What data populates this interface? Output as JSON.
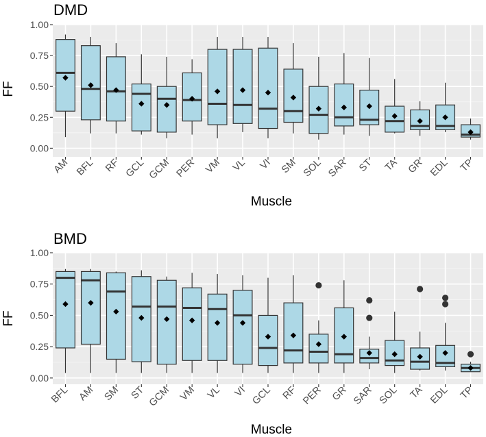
{
  "chart_data": [
    {
      "type": "boxplot",
      "title": "DMD",
      "xlabel": "Muscle",
      "ylabel": "FF",
      "ylim": [
        -0.07,
        1.0
      ],
      "yticks": [
        0.0,
        0.25,
        0.5,
        0.75,
        1.0
      ],
      "ytick_labels": [
        "0.00",
        "0.25",
        "0.50",
        "0.75",
        "1.00"
      ],
      "grid": true,
      "box_fill": "#add8e6",
      "panel_bg": "#ebebeb",
      "categories": [
        "AM",
        "BFL",
        "RF",
        "GCL",
        "GCM",
        "PER",
        "VM",
        "VL",
        "VI",
        "SM",
        "SOL",
        "SAR",
        "ST",
        "TA",
        "GR",
        "EDL",
        "TP"
      ],
      "boxes": [
        {
          "min": 0.09,
          "q1": 0.3,
          "median": 0.61,
          "q3": 0.88,
          "max": 0.92,
          "mean": 0.57,
          "outliers": []
        },
        {
          "min": 0.12,
          "q1": 0.23,
          "median": 0.48,
          "q3": 0.83,
          "max": 0.9,
          "mean": 0.51,
          "outliers": []
        },
        {
          "min": 0.12,
          "q1": 0.22,
          "median": 0.46,
          "q3": 0.74,
          "max": 0.85,
          "mean": 0.47,
          "outliers": []
        },
        {
          "min": 0.11,
          "q1": 0.14,
          "median": 0.44,
          "q3": 0.52,
          "max": 0.76,
          "mean": 0.36,
          "outliers": []
        },
        {
          "min": 0.08,
          "q1": 0.13,
          "median": 0.4,
          "q3": 0.5,
          "max": 0.74,
          "mean": 0.35,
          "outliers": []
        },
        {
          "min": 0.11,
          "q1": 0.22,
          "median": 0.39,
          "q3": 0.61,
          "max": 0.72,
          "mean": 0.4,
          "outliers": []
        },
        {
          "min": 0.08,
          "q1": 0.19,
          "median": 0.36,
          "q3": 0.8,
          "max": 0.9,
          "mean": 0.46,
          "outliers": []
        },
        {
          "min": 0.13,
          "q1": 0.2,
          "median": 0.35,
          "q3": 0.8,
          "max": 0.9,
          "mean": 0.47,
          "outliers": []
        },
        {
          "min": 0.08,
          "q1": 0.16,
          "median": 0.32,
          "q3": 0.81,
          "max": 0.9,
          "mean": 0.45,
          "outliers": []
        },
        {
          "min": 0.12,
          "q1": 0.21,
          "median": 0.3,
          "q3": 0.64,
          "max": 0.85,
          "mean": 0.41,
          "outliers": []
        },
        {
          "min": 0.07,
          "q1": 0.12,
          "median": 0.27,
          "q3": 0.5,
          "max": 0.74,
          "mean": 0.32,
          "outliers": []
        },
        {
          "min": 0.11,
          "q1": 0.18,
          "median": 0.25,
          "q3": 0.52,
          "max": 0.77,
          "mean": 0.33,
          "outliers": []
        },
        {
          "min": 0.1,
          "q1": 0.19,
          "median": 0.23,
          "q3": 0.47,
          "max": 0.73,
          "mean": 0.34,
          "outliers": []
        },
        {
          "min": 0.12,
          "q1": 0.13,
          "median": 0.22,
          "q3": 0.34,
          "max": 0.56,
          "mean": 0.26,
          "outliers": []
        },
        {
          "min": 0.1,
          "q1": 0.15,
          "median": 0.18,
          "q3": 0.31,
          "max": 0.38,
          "mean": 0.22,
          "outliers": []
        },
        {
          "min": 0.13,
          "q1": 0.15,
          "median": 0.18,
          "q3": 0.35,
          "max": 0.53,
          "mean": 0.25,
          "outliers": []
        },
        {
          "min": 0.07,
          "q1": 0.09,
          "median": 0.11,
          "q3": 0.19,
          "max": 0.24,
          "mean": 0.13,
          "outliers": []
        }
      ]
    },
    {
      "type": "boxplot",
      "title": "BMD",
      "xlabel": "Muscle",
      "ylabel": "FF",
      "ylim": [
        -0.05,
        1.0
      ],
      "yticks": [
        0.0,
        0.25,
        0.5,
        0.75,
        1.0
      ],
      "ytick_labels": [
        "0.00",
        "0.25",
        "0.50",
        "0.75",
        "1.00"
      ],
      "grid": true,
      "box_fill": "#add8e6",
      "panel_bg": "#ebebeb",
      "categories": [
        "BFL",
        "AM",
        "SM",
        "ST",
        "GCM",
        "VM",
        "VL",
        "VI",
        "GCL",
        "RF",
        "PER",
        "GR",
        "SAR",
        "SOL",
        "TA",
        "EDL",
        "TP"
      ],
      "boxes": [
        {
          "min": 0.04,
          "q1": 0.24,
          "median": 0.8,
          "q3": 0.85,
          "max": 0.87,
          "mean": 0.59,
          "outliers": []
        },
        {
          "min": 0.04,
          "q1": 0.27,
          "median": 0.78,
          "q3": 0.85,
          "max": 0.87,
          "mean": 0.6,
          "outliers": []
        },
        {
          "min": 0.04,
          "q1": 0.15,
          "median": 0.69,
          "q3": 0.84,
          "max": 0.85,
          "mean": 0.53,
          "outliers": []
        },
        {
          "min": 0.04,
          "q1": 0.13,
          "median": 0.57,
          "q3": 0.81,
          "max": 0.86,
          "mean": 0.48,
          "outliers": []
        },
        {
          "min": 0.04,
          "q1": 0.11,
          "median": 0.57,
          "q3": 0.78,
          "max": 0.81,
          "mean": 0.47,
          "outliers": []
        },
        {
          "min": 0.04,
          "q1": 0.14,
          "median": 0.56,
          "q3": 0.72,
          "max": 0.84,
          "mean": 0.46,
          "outliers": []
        },
        {
          "min": 0.04,
          "q1": 0.14,
          "median": 0.55,
          "q3": 0.67,
          "max": 0.83,
          "mean": 0.44,
          "outliers": []
        },
        {
          "min": 0.04,
          "q1": 0.11,
          "median": 0.5,
          "q3": 0.7,
          "max": 0.82,
          "mean": 0.44,
          "outliers": []
        },
        {
          "min": 0.04,
          "q1": 0.1,
          "median": 0.24,
          "q3": 0.5,
          "max": 0.8,
          "mean": 0.33,
          "outliers": []
        },
        {
          "min": 0.04,
          "q1": 0.12,
          "median": 0.22,
          "q3": 0.6,
          "max": 0.82,
          "mean": 0.34,
          "outliers": []
        },
        {
          "min": 0.04,
          "q1": 0.12,
          "median": 0.21,
          "q3": 0.35,
          "max": 0.46,
          "mean": 0.27,
          "outliers": [
            0.74
          ]
        },
        {
          "min": 0.04,
          "q1": 0.12,
          "median": 0.19,
          "q3": 0.56,
          "max": 0.78,
          "mean": 0.33,
          "outliers": []
        },
        {
          "min": 0.07,
          "q1": 0.12,
          "median": 0.16,
          "q3": 0.23,
          "max": 0.33,
          "mean": 0.2,
          "outliers": [
            0.48,
            0.62
          ]
        },
        {
          "min": 0.04,
          "q1": 0.1,
          "median": 0.14,
          "q3": 0.3,
          "max": 0.53,
          "mean": 0.19,
          "outliers": []
        },
        {
          "min": 0.06,
          "q1": 0.07,
          "median": 0.13,
          "q3": 0.24,
          "max": 0.37,
          "mean": 0.17,
          "outliers": [
            0.71
          ]
        },
        {
          "min": 0.06,
          "q1": 0.09,
          "median": 0.12,
          "q3": 0.26,
          "max": 0.44,
          "mean": 0.2,
          "outliers": [
            0.59,
            0.64
          ]
        },
        {
          "min": 0.05,
          "q1": 0.05,
          "median": 0.08,
          "q3": 0.11,
          "max": 0.13,
          "mean": 0.08,
          "outliers": [
            0.19
          ]
        }
      ]
    }
  ]
}
